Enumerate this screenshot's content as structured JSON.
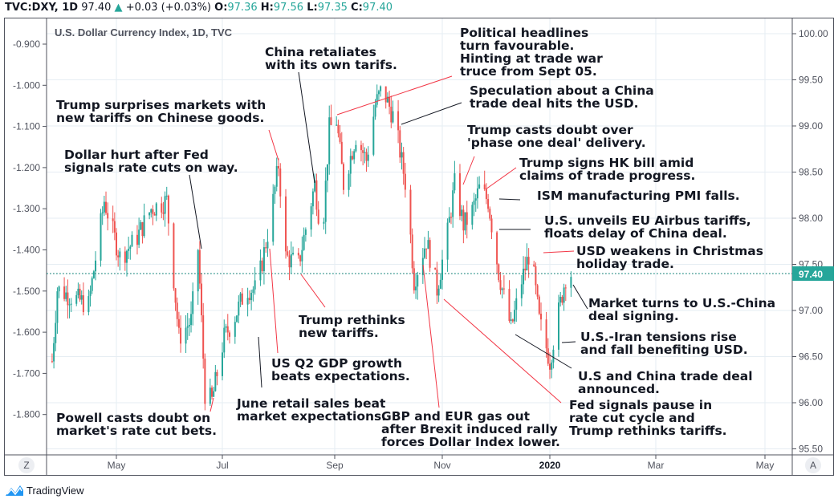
{
  "header": {
    "symbol": "TVC:DXY, 1D",
    "last": "97.40",
    "change": "+0.03 (+0.03%)",
    "o_label": "O:",
    "o": "97.36",
    "h_label": "H:",
    "h": "97.56",
    "l_label": "L:",
    "l": "97.35",
    "c_label": "C:",
    "c": "97.40"
  },
  "colors": {
    "up": "#26a69a",
    "down": "#ef5350",
    "grid": "#e6edf3",
    "annotation_red": "#f23645",
    "annotation_black": "#131722"
  },
  "footer": {
    "brand": "TradingView",
    "left_button": "Z",
    "right_button": "A"
  },
  "chart_data": {
    "type": "candlestick",
    "title": "U.S. Dollar Currency Index, 1D, TVC",
    "right_axis": {
      "ticks": [
        "100.00",
        "99.50",
        "99.00",
        "98.50",
        "98.00",
        "97.50",
        "97.00",
        "96.50",
        "96.00",
        "95.50"
      ],
      "range": [
        95.5,
        100.0
      ]
    },
    "left_axis": {
      "ticks": [
        "-0.900",
        "-1.000",
        "-1.100",
        "-1.200",
        "-1.300",
        "-1.400",
        "-1.500",
        "-1.600",
        "-1.700",
        "-1.800"
      ]
    },
    "x_ticks": [
      {
        "label": "May",
        "date": "2019-05-01"
      },
      {
        "label": "Jul",
        "date": "2019-07-01"
      },
      {
        "label": "Sep",
        "date": "2019-09-01"
      },
      {
        "label": "Nov",
        "date": "2019-11-01"
      },
      {
        "label": "2020",
        "date": "2020-01-01"
      },
      {
        "label": "Mar",
        "date": "2020-03-01"
      },
      {
        "label": "May",
        "date": "2020-05-01"
      }
    ],
    "last_price": "97.40",
    "grid": true,
    "approx_close_path": [
      [
        "2019-03-25",
        96.45
      ],
      [
        "2019-03-28",
        97.23
      ],
      [
        "2019-04-05",
        97.15
      ],
      [
        "2019-04-15",
        97.06
      ],
      [
        "2019-04-24",
        98.19
      ],
      [
        "2019-05-03",
        97.58
      ],
      [
        "2019-05-12",
        97.76
      ],
      [
        "2019-05-21",
        98.1
      ],
      [
        "2019-05-30",
        98.19
      ],
      [
        "2019-06-06",
        96.71
      ],
      [
        "2019-06-13",
        96.89
      ],
      [
        "2019-06-17",
        97.67
      ],
      [
        "2019-06-21",
        96.1
      ],
      [
        "2019-06-25",
        96.02
      ],
      [
        "2019-07-02",
        96.71
      ],
      [
        "2019-07-07",
        96.89
      ],
      [
        "2019-07-14",
        97.23
      ],
      [
        "2019-07-20",
        97.23
      ],
      [
        "2019-07-27",
        97.93
      ],
      [
        "2019-08-01",
        98.58
      ],
      [
        "2019-08-05",
        97.58
      ],
      [
        "2019-08-12",
        97.5
      ],
      [
        "2019-08-21",
        98.37
      ],
      [
        "2019-08-25",
        97.76
      ],
      [
        "2019-08-29",
        98.97
      ],
      [
        "2019-09-02",
        99.06
      ],
      [
        "2019-09-06",
        98.37
      ],
      [
        "2019-09-13",
        98.89
      ],
      [
        "2019-09-19",
        98.63
      ],
      [
        "2019-09-24",
        99.23
      ],
      [
        "2019-09-28",
        99.41
      ],
      [
        "2019-10-05",
        99.06
      ],
      [
        "2019-10-12",
        98.28
      ],
      [
        "2019-10-16",
        97.32
      ],
      [
        "2019-10-23",
        97.76
      ],
      [
        "2019-10-29",
        97.23
      ],
      [
        "2019-11-04",
        97.84
      ],
      [
        "2019-11-08",
        98.37
      ],
      [
        "2019-11-13",
        97.93
      ],
      [
        "2019-11-17",
        98.02
      ],
      [
        "2019-11-22",
        98.32
      ],
      [
        "2019-11-27",
        98.19
      ],
      [
        "2019-12-03",
        97.41
      ],
      [
        "2019-12-10",
        96.8
      ],
      [
        "2019-12-16",
        97.32
      ],
      [
        "2019-12-21",
        97.67
      ],
      [
        "2019-12-26",
        96.89
      ],
      [
        "2020-01-01",
        96.45
      ],
      [
        "2020-01-05",
        96.89
      ],
      [
        "2020-01-10",
        97.37
      ],
      [
        "2020-01-13",
        97.4
      ]
    ],
    "annotations": [
      "Dollar hurt after Fed\nsignals rate cuts on way.",
      "Trump surprises markets with\nnew tariffs on Chinese goods.",
      "China retaliates\nwith its own tarifs.",
      "Political headlines\nturn favourable.\nHinting at trade war\ntruce from Sept 05.",
      "Speculation about a China\ntrade deal hits the USD.",
      "Trump casts doubt over\n'phase one deal' delivery.",
      "Trump signs HK bill amid\nclaims of trade progress.",
      "ISM manufacturing PMI falls.",
      "U.S. unveils EU Airbus tariffs,\nfloats delay of China deal.",
      "USD weakens in Christmas\nholiday trade.",
      "Market turns to U.S.-China\ndeal signing.",
      "U.S.-Iran tensions rise\nand fall benefiting USD.",
      "U.S and China trade deal\nannounced.",
      "Fed signals pause in\nrate cut cycle and\nTrump rethinks tariffs.",
      "GBP and EUR gas out\nafter Brexit induced rally\nforces Dollar Index lower.",
      "Trump rethinks\nnew tariffs.",
      "US Q2 GDP growth\nbeats expectations.",
      "June retail sales beat\nmarket expectations.",
      "Powell casts doubt on\nmarket's rate cut bets."
    ]
  }
}
